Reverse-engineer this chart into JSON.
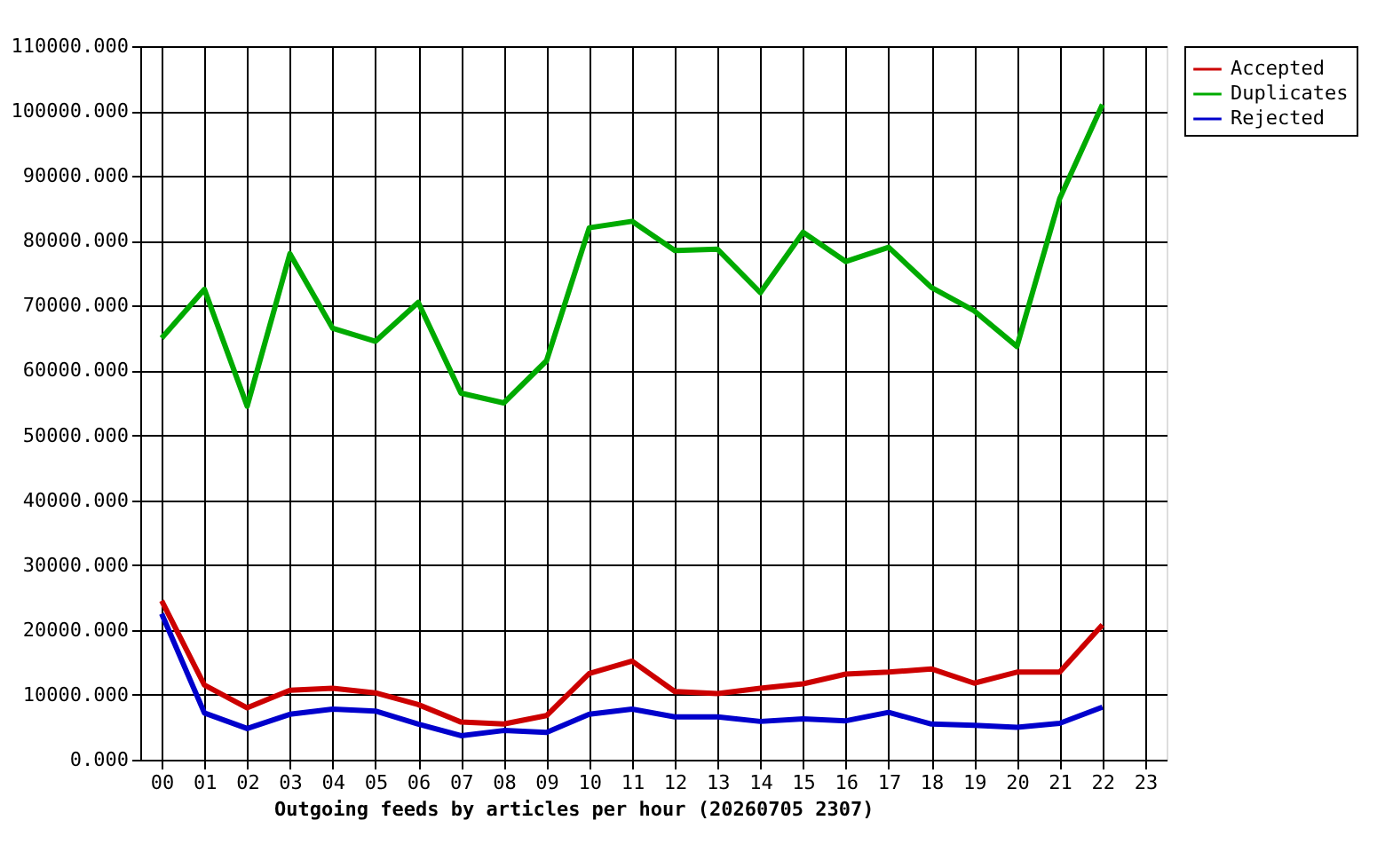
{
  "chart_data": {
    "type": "line",
    "xlabel": "Outgoing feeds by articles per hour (20260705 2307)",
    "categories": [
      "00",
      "01",
      "02",
      "03",
      "04",
      "05",
      "06",
      "07",
      "08",
      "09",
      "10",
      "11",
      "12",
      "13",
      "14",
      "15",
      "16",
      "17",
      "18",
      "19",
      "20",
      "21",
      "22",
      "23"
    ],
    "series": [
      {
        "name": "Accepted",
        "color": "#cc0000",
        "values": [
          24500,
          11500,
          8000,
          10700,
          11000,
          10300,
          8500,
          5800,
          5500,
          6800,
          13300,
          15200,
          10500,
          10200,
          11000,
          11700,
          13200,
          13500,
          14000,
          11800,
          13500,
          13500,
          20800,
          null
        ]
      },
      {
        "name": "Duplicates",
        "color": "#00aa00",
        "values": [
          65000,
          72500,
          54500,
          78000,
          66500,
          64500,
          70500,
          56500,
          55000,
          61500,
          82000,
          83000,
          78500,
          78700,
          72000,
          81300,
          76800,
          79000,
          72800,
          69200,
          63700,
          86500,
          101000,
          null
        ]
      },
      {
        "name": "Rejected",
        "color": "#0000cc",
        "values": [
          22500,
          7200,
          4800,
          7000,
          7800,
          7500,
          5500,
          3700,
          4500,
          4200,
          7000,
          7800,
          6600,
          6600,
          5900,
          6300,
          6000,
          7300,
          5500,
          5300,
          5000,
          5600,
          8100,
          null
        ]
      }
    ],
    "ylim": [
      0,
      110000
    ],
    "yticks": [
      {
        "value": 0,
        "label": "0.000"
      },
      {
        "value": 10000,
        "label": "10000.000"
      },
      {
        "value": 20000,
        "label": "20000.000"
      },
      {
        "value": 30000,
        "label": "30000.000"
      },
      {
        "value": 40000,
        "label": "40000.000"
      },
      {
        "value": 50000,
        "label": "50000.000"
      },
      {
        "value": 60000,
        "label": "60000.000"
      },
      {
        "value": 70000,
        "label": "70000.000"
      },
      {
        "value": 80000,
        "label": "80000.000"
      },
      {
        "value": 90000,
        "label": "90000.000"
      },
      {
        "value": 100000,
        "label": "100000.000"
      },
      {
        "value": 110000,
        "label": "110000.000"
      }
    ],
    "grid": true,
    "legend": "top right",
    "marker": "none",
    "line_style": "solid"
  }
}
